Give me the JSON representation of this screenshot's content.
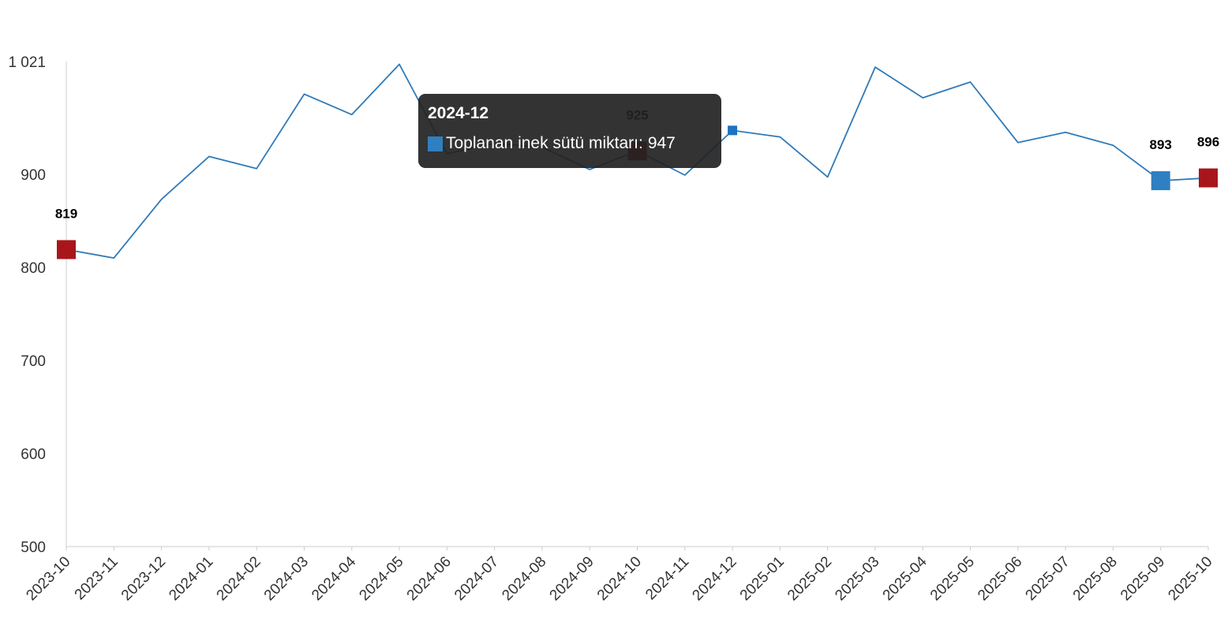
{
  "colors": {
    "line": "#2f7ab8",
    "highlight_red": "#a8161c",
    "highlight_blue": "#2f7fc1",
    "axis": "#cccccc",
    "tick_text": "#333333"
  },
  "tooltip": {
    "title": "2024-12",
    "series_name": "Toplanan inek sütü miktarı",
    "value": "947",
    "swatch_color": "#2f7fc1"
  },
  "chart_data": {
    "type": "line",
    "title": "",
    "xlabel": "",
    "ylabel": "",
    "ylim": [
      500,
      1021
    ],
    "yticks": [
      500,
      600,
      700,
      800,
      900,
      1021
    ],
    "ytick_labels": [
      "500",
      "600",
      "700",
      "800",
      "900",
      "1 021"
    ],
    "grid": false,
    "legend": "none",
    "categories": [
      "2023-10",
      "2023-11",
      "2023-12",
      "2024-01",
      "2024-02",
      "2024-03",
      "2024-04",
      "2024-05",
      "2024-06",
      "2024-07",
      "2024-08",
      "2024-09",
      "2024-10",
      "2024-11",
      "2024-12",
      "2025-01",
      "2025-02",
      "2025-03",
      "2025-04",
      "2025-05",
      "2025-06",
      "2025-07",
      "2025-08",
      "2025-09",
      "2025-10"
    ],
    "series": [
      {
        "name": "Toplanan inek sütü miktarı",
        "values": [
          819,
          810,
          873,
          919,
          906,
          986,
          964,
          1018,
          922,
          933,
          929,
          905,
          925,
          899,
          947,
          940,
          897,
          1015,
          982,
          999,
          934,
          945,
          931,
          893,
          896
        ]
      }
    ],
    "highlights": [
      {
        "category": "2023-10",
        "value": 819,
        "label": "819",
        "color": "#a8161c"
      },
      {
        "category": "2024-10",
        "value": 925,
        "label": "925",
        "color": "#a8161c"
      },
      {
        "category": "2025-09",
        "value": 893,
        "label": "893",
        "color": "#2f7fc1"
      },
      {
        "category": "2025-10",
        "value": 896,
        "label": "896",
        "color": "#a8161c"
      }
    ],
    "hovered": {
      "category": "2024-12",
      "value": 947
    }
  }
}
